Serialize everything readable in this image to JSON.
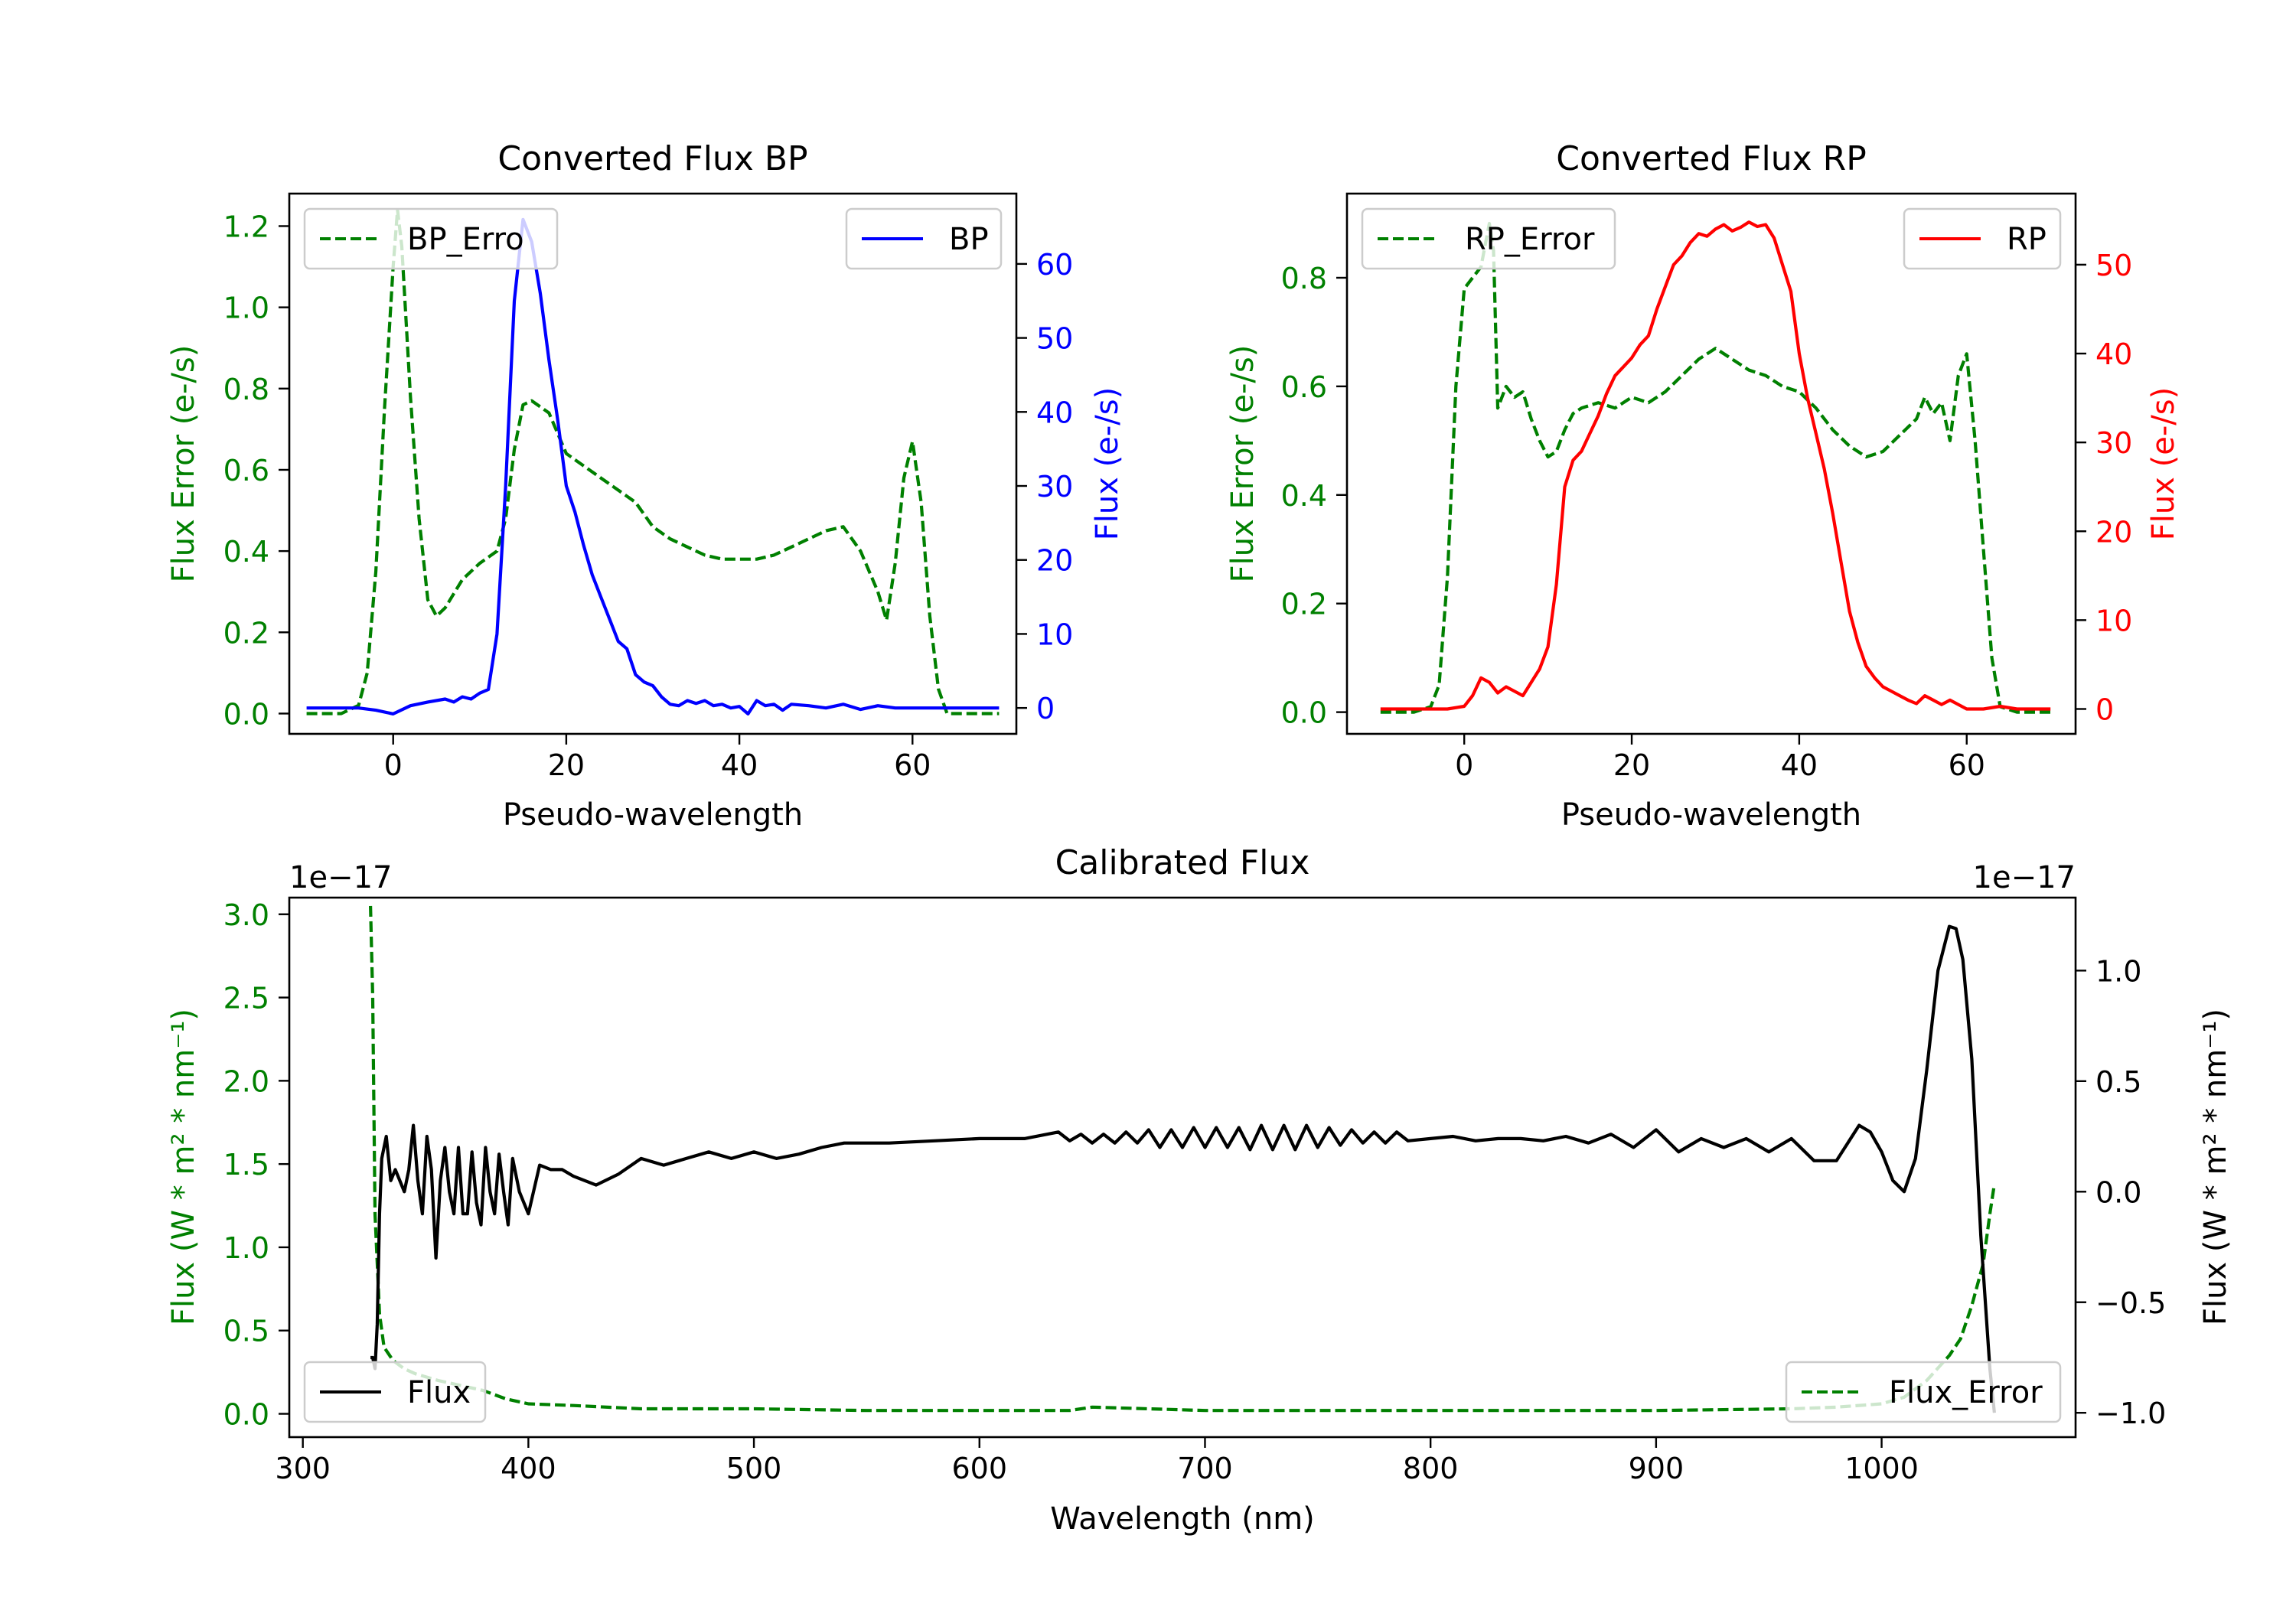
{
  "colors": {
    "bp": "#0000ff",
    "rp": "#ff0000",
    "error": "#008000",
    "flux": "#000000"
  },
  "chart_data": [
    {
      "id": "bp",
      "type": "line",
      "title": "Converted Flux BP",
      "xlabel": "Pseudo-wavelength",
      "ylabel_left": "Flux Error (e-/s)",
      "ylabel_right": "Flux (e-/s)",
      "xlim": [
        -12,
        72
      ],
      "xticks": [
        0,
        20,
        40,
        60
      ],
      "ylim_left": [
        -0.05,
        1.28
      ],
      "yticks_left": [
        0.0,
        0.2,
        0.4,
        0.6,
        0.8,
        1.0,
        1.2
      ],
      "ylim_right": [
        -3.5,
        69.5
      ],
      "yticks_right": [
        0,
        10,
        20,
        30,
        40,
        50,
        60
      ],
      "series": [
        {
          "name": "BP_Error",
          "axis": "left",
          "style": "dashed",
          "color": "#008000",
          "legend": "upper-left",
          "legend_label": "BP_Erro",
          "x": [
            -10,
            -6,
            -4,
            -3,
            -2,
            -1,
            0,
            0.5,
            1,
            2,
            3,
            4,
            5,
            6,
            8,
            10,
            12,
            13,
            14,
            15,
            16,
            18,
            20,
            22,
            24,
            26,
            28,
            30,
            32,
            34,
            36,
            38,
            40,
            42,
            44,
            46,
            48,
            50,
            52,
            54,
            56,
            57,
            58,
            59,
            60,
            61,
            62,
            63,
            64,
            66,
            68,
            70
          ],
          "y": [
            0.0,
            0.0,
            0.02,
            0.1,
            0.35,
            0.75,
            1.1,
            1.24,
            1.15,
            0.78,
            0.48,
            0.28,
            0.24,
            0.26,
            0.33,
            0.37,
            0.4,
            0.48,
            0.65,
            0.76,
            0.77,
            0.74,
            0.64,
            0.61,
            0.58,
            0.55,
            0.52,
            0.46,
            0.43,
            0.41,
            0.39,
            0.38,
            0.38,
            0.38,
            0.39,
            0.41,
            0.43,
            0.45,
            0.46,
            0.4,
            0.3,
            0.23,
            0.37,
            0.58,
            0.67,
            0.52,
            0.24,
            0.06,
            0.0,
            0.0,
            0.0,
            0.0
          ]
        },
        {
          "name": "BP",
          "axis": "right",
          "style": "solid",
          "color": "#0000ff",
          "legend": "upper-right",
          "legend_label": "BP",
          "x": [
            -10,
            -6,
            -4,
            -2,
            0,
            2,
            4,
            6,
            7,
            8,
            9,
            10,
            11,
            12,
            13,
            14,
            15,
            16,
            17,
            18,
            19,
            20,
            21,
            22,
            23,
            24,
            25,
            26,
            27,
            28,
            29,
            30,
            31,
            32,
            33,
            34,
            35,
            36,
            37,
            38,
            39,
            40,
            41,
            42,
            43,
            44,
            45,
            46,
            48,
            50,
            52,
            54,
            56,
            58,
            60,
            62,
            64,
            66,
            68,
            70
          ],
          "y": [
            0,
            0,
            0,
            -0.3,
            -0.8,
            0.3,
            0.8,
            1.2,
            0.8,
            1.5,
            1.2,
            2.0,
            2.5,
            10.0,
            30.0,
            55.0,
            66.0,
            63.0,
            56.0,
            47.0,
            39.0,
            30.0,
            26.5,
            22.0,
            18.0,
            15.0,
            12.0,
            9.0,
            8.0,
            4.5,
            3.5,
            3.0,
            1.5,
            0.5,
            0.3,
            1.0,
            0.6,
            1.0,
            0.3,
            0.5,
            0.0,
            0.2,
            -0.8,
            1.0,
            0.3,
            0.5,
            -0.3,
            0.5,
            0.3,
            0.0,
            0.5,
            -0.2,
            0.3,
            0.0,
            0.0,
            0.0,
            0.0,
            0.0,
            0.0,
            0.0
          ]
        }
      ]
    },
    {
      "id": "rp",
      "type": "line",
      "title": "Converted Flux RP",
      "xlabel": "Pseudo-wavelength",
      "ylabel_left": "Flux Error (e-/s)",
      "ylabel_right": "Flux (e-/s)",
      "xlim": [
        -14,
        73
      ],
      "xticks": [
        0,
        20,
        40,
        60
      ],
      "ylim_left": [
        -0.04,
        0.955
      ],
      "yticks_left": [
        0.0,
        0.2,
        0.4,
        0.6,
        0.8
      ],
      "ylim_right": [
        -2.8,
        58.0
      ],
      "yticks_right": [
        0,
        10,
        20,
        30,
        40,
        50
      ],
      "series": [
        {
          "name": "RP_Error",
          "axis": "left",
          "style": "dashed",
          "color": "#008000",
          "legend": "upper-left",
          "legend_label": "RP_Error",
          "x": [
            -10,
            -6,
            -4,
            -3,
            -2,
            -1,
            0,
            1,
            2,
            3,
            3.5,
            4,
            5,
            6,
            7,
            8,
            9,
            10,
            11,
            12,
            13,
            14,
            16,
            18,
            20,
            22,
            24,
            26,
            28,
            30,
            32,
            34,
            36,
            38,
            40,
            42,
            44,
            46,
            48,
            50,
            52,
            54,
            55,
            56,
            57,
            58,
            59,
            60,
            61,
            62,
            63,
            64,
            66,
            68,
            70
          ],
          "y": [
            0.0,
            0.0,
            0.01,
            0.05,
            0.25,
            0.6,
            0.78,
            0.8,
            0.82,
            0.9,
            0.85,
            0.56,
            0.6,
            0.58,
            0.59,
            0.54,
            0.5,
            0.47,
            0.48,
            0.52,
            0.55,
            0.56,
            0.57,
            0.56,
            0.58,
            0.57,
            0.59,
            0.62,
            0.65,
            0.67,
            0.65,
            0.63,
            0.62,
            0.6,
            0.59,
            0.56,
            0.52,
            0.49,
            0.47,
            0.48,
            0.51,
            0.54,
            0.58,
            0.55,
            0.57,
            0.5,
            0.62,
            0.66,
            0.5,
            0.3,
            0.1,
            0.01,
            0.0,
            0.0,
            0.0
          ]
        },
        {
          "name": "RP",
          "axis": "right",
          "style": "solid",
          "color": "#ff0000",
          "legend": "upper-right",
          "legend_label": "RP",
          "x": [
            -10,
            -6,
            -2,
            0,
            1,
            2,
            3,
            4,
            5,
            6,
            7,
            8,
            9,
            10,
            11,
            12,
            13,
            14,
            15,
            16,
            17,
            18,
            19,
            20,
            21,
            22,
            23,
            24,
            25,
            26,
            27,
            28,
            29,
            30,
            31,
            32,
            33,
            34,
            35,
            36,
            37,
            38,
            39,
            40,
            41,
            42,
            43,
            44,
            45,
            46,
            47,
            48,
            49,
            50,
            51,
            52,
            53,
            54,
            55,
            56,
            57,
            58,
            59,
            60,
            62,
            64,
            66,
            68,
            70
          ],
          "y": [
            0,
            0,
            0,
            0.3,
            1.5,
            3.5,
            3.0,
            1.8,
            2.5,
            2.0,
            1.5,
            3.0,
            4.5,
            7.0,
            14.0,
            25.0,
            28.0,
            29.0,
            31.0,
            33.0,
            35.5,
            37.5,
            38.5,
            39.5,
            41.0,
            42.0,
            45.0,
            47.5,
            50.0,
            51.0,
            52.5,
            53.5,
            53.2,
            54.0,
            54.5,
            53.8,
            54.2,
            54.8,
            54.3,
            54.5,
            53.0,
            50.0,
            47.0,
            40.0,
            35.0,
            31.0,
            27.0,
            22.0,
            16.5,
            11.0,
            7.5,
            4.8,
            3.5,
            2.5,
            2.0,
            1.5,
            1.0,
            0.6,
            1.5,
            1.0,
            0.5,
            1.0,
            0.5,
            0.0,
            0.0,
            0.3,
            0.0,
            0.0,
            0.0
          ]
        }
      ]
    },
    {
      "id": "calibrated",
      "type": "line",
      "title": "Calibrated Flux",
      "xlabel": "Wavelength (nm)",
      "ylabel_left": "Flux (W * m² * nm⁻¹)",
      "ylabel_right": "Flux (W * m² * nm⁻¹)",
      "offset_left": "1e−17",
      "offset_right": "1e−17",
      "xlim": [
        294,
        1086
      ],
      "xticks": [
        300,
        400,
        500,
        600,
        700,
        800,
        900,
        1000
      ],
      "ylim_left": [
        -0.14,
        3.1
      ],
      "yticks_left": [
        0.0,
        0.5,
        1.0,
        1.5,
        2.0,
        2.5,
        3.0
      ],
      "ylim_right": [
        -1.11,
        1.33
      ],
      "yticks_right": [
        -1.0,
        -0.5,
        0.0,
        0.5,
        1.0
      ],
      "series": [
        {
          "name": "Flux_Error",
          "axis": "left",
          "style": "dashed",
          "color": "#008000",
          "legend": "lower-right",
          "legend_label": "Flux_Error",
          "x": [
            330,
            331,
            332,
            334,
            336,
            340,
            345,
            350,
            360,
            370,
            380,
            390,
            400,
            420,
            450,
            500,
            550,
            600,
            640,
            650,
            700,
            800,
            900,
            960,
            980,
            1000,
            1010,
            1020,
            1030,
            1035,
            1040,
            1045,
            1048,
            1050
          ],
          "y": [
            3.05,
            2.5,
            1.2,
            0.6,
            0.4,
            0.32,
            0.27,
            0.24,
            0.2,
            0.17,
            0.14,
            0.09,
            0.06,
            0.05,
            0.03,
            0.03,
            0.02,
            0.02,
            0.02,
            0.04,
            0.02,
            0.02,
            0.02,
            0.03,
            0.04,
            0.06,
            0.1,
            0.2,
            0.35,
            0.45,
            0.65,
            0.9,
            1.2,
            1.38
          ]
        },
        {
          "name": "Flux",
          "axis": "right",
          "style": "solid",
          "color": "#000000",
          "legend": "lower-left",
          "legend_label": "Flux",
          "x": [
            330,
            331,
            332,
            333,
            334,
            335,
            337,
            339,
            341,
            343,
            345,
            347,
            349,
            351,
            353,
            355,
            357,
            359,
            361,
            363,
            365,
            367,
            369,
            371,
            373,
            375,
            377,
            379,
            381,
            383,
            385,
            387,
            389,
            391,
            393,
            396,
            400,
            405,
            410,
            415,
            420,
            425,
            430,
            440,
            450,
            460,
            470,
            480,
            490,
            500,
            510,
            520,
            530,
            540,
            560,
            580,
            600,
            620,
            635,
            640,
            645,
            650,
            655,
            660,
            665,
            670,
            675,
            680,
            685,
            690,
            695,
            700,
            705,
            710,
            715,
            720,
            725,
            730,
            735,
            740,
            745,
            750,
            755,
            760,
            765,
            770,
            775,
            780,
            785,
            790,
            800,
            810,
            820,
            830,
            840,
            850,
            860,
            870,
            880,
            890,
            900,
            910,
            920,
            930,
            940,
            950,
            960,
            970,
            980,
            990,
            995,
            1000,
            1005,
            1010,
            1015,
            1020,
            1025,
            1030,
            1033,
            1036,
            1040,
            1044,
            1048,
            1050
          ],
          "y": [
            -0.75,
            -0.75,
            -0.8,
            -0.6,
            -0.1,
            0.15,
            0.25,
            0.05,
            0.1,
            0.05,
            0.0,
            0.1,
            0.3,
            0.05,
            -0.1,
            0.25,
            0.1,
            -0.3,
            0.05,
            0.2,
            0.0,
            -0.1,
            0.2,
            -0.1,
            -0.1,
            0.18,
            -0.05,
            -0.15,
            0.2,
            0.0,
            -0.1,
            0.17,
            0.0,
            -0.15,
            0.15,
            0.0,
            -0.1,
            0.12,
            0.1,
            0.1,
            0.07,
            0.05,
            0.03,
            0.08,
            0.15,
            0.12,
            0.15,
            0.18,
            0.15,
            0.18,
            0.15,
            0.17,
            0.2,
            0.22,
            0.22,
            0.23,
            0.24,
            0.24,
            0.27,
            0.23,
            0.26,
            0.22,
            0.26,
            0.22,
            0.27,
            0.22,
            0.28,
            0.2,
            0.28,
            0.2,
            0.29,
            0.2,
            0.29,
            0.2,
            0.29,
            0.19,
            0.3,
            0.19,
            0.3,
            0.19,
            0.3,
            0.2,
            0.29,
            0.21,
            0.28,
            0.22,
            0.27,
            0.22,
            0.27,
            0.23,
            0.24,
            0.25,
            0.23,
            0.24,
            0.24,
            0.23,
            0.25,
            0.22,
            0.26,
            0.2,
            0.28,
            0.18,
            0.24,
            0.2,
            0.24,
            0.18,
            0.24,
            0.14,
            0.14,
            0.3,
            0.27,
            0.18,
            0.05,
            0.0,
            0.15,
            0.55,
            1.0,
            1.2,
            1.19,
            1.05,
            0.6,
            -0.2,
            -0.8,
            -1.0
          ]
        }
      ]
    }
  ]
}
